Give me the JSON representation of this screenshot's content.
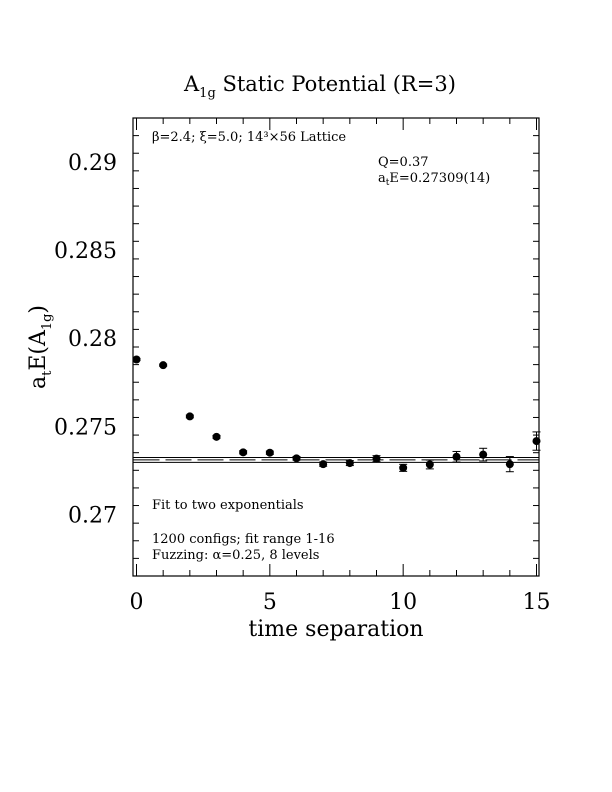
{
  "chart_data": {
    "type": "scatter",
    "title": {
      "main": "A",
      "sub": "1g",
      "rest": " Static Potential (R=3)"
    },
    "xlabel": "time separation",
    "ylabel": {
      "main": "a",
      "sub1": "t",
      "mid": "E(A",
      "sub2": "1g",
      "end": ")"
    },
    "xlim": [
      0,
      15
    ],
    "ylim": [
      0.2665,
      0.2925
    ],
    "x_ticks": [
      0,
      5,
      10,
      15
    ],
    "y_ticks": [
      0.27,
      0.275,
      0.28,
      0.285,
      0.29
    ],
    "x_tick_labels": [
      "0",
      "5",
      "10",
      "15"
    ],
    "y_tick_labels": [
      "0.27",
      "0.275",
      "0.28",
      "0.285",
      "0.29"
    ],
    "x_minor_step": 1,
    "y_minor_step": 0.001,
    "grid": false,
    "series": [
      {
        "x": [
          0,
          1,
          2,
          3,
          4,
          5,
          6,
          7,
          8,
          9,
          10,
          11,
          12,
          13,
          14,
          15
        ],
        "y": [
          0.27879,
          0.27847,
          0.27556,
          0.2744,
          0.27352,
          0.2735,
          0.27318,
          0.27285,
          0.27291,
          0.27316,
          0.27264,
          0.27283,
          0.27327,
          0.27339,
          0.27285,
          0.27416
        ],
        "yerr": [
          6e-05,
          6e-05,
          8e-05,
          8e-05,
          9e-05,
          9e-05,
          0.0001,
          0.00012,
          0.00014,
          0.00017,
          0.0002,
          0.00025,
          0.0003,
          0.00036,
          0.00043,
          0.00052
        ]
      }
    ],
    "fit": {
      "value": 0.27309,
      "error": 0.00014,
      "x_range": [
        0,
        15
      ]
    },
    "annotations": {
      "lattice": "β=2.4; ξ=5.0; 14³×56 Lattice",
      "q": "Q=0.37",
      "energy": {
        "main": "a",
        "sub": "t",
        "rest": "E=0.27309(14)"
      },
      "fit_label": "Fit to two exponentials",
      "configs": "1200 configs; fit range 1-16",
      "fuzzing": "Fuzzing: α=0.25, 8 levels"
    }
  }
}
